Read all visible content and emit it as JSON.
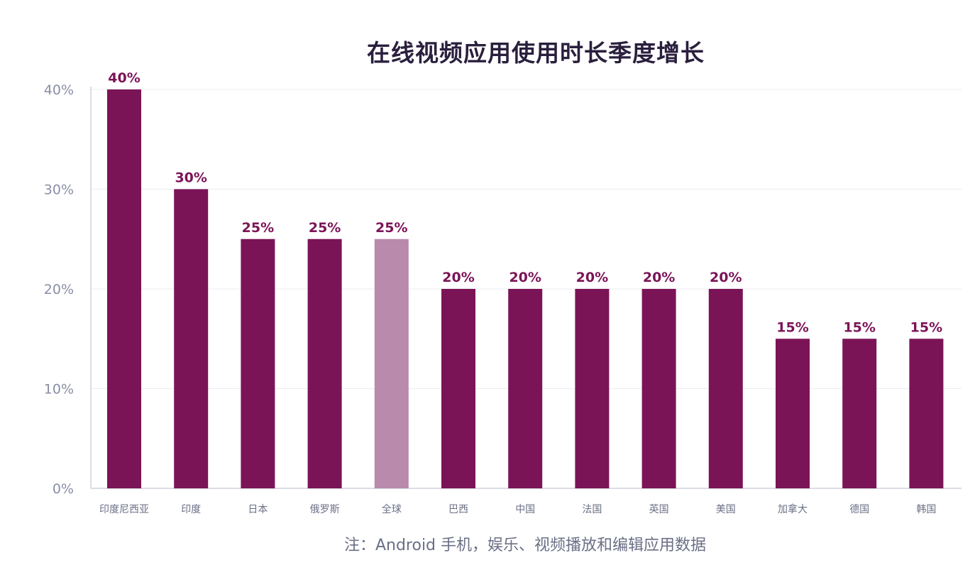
{
  "chart_data": {
    "type": "bar",
    "title": "在线视频应用使用时长季度增长",
    "xlabel": "",
    "ylabel": "",
    "categories": [
      "印度尼西亚",
      "印度",
      "日本",
      "俄罗斯",
      "全球",
      "巴西",
      "中国",
      "法国",
      "英国",
      "美国",
      "加拿大",
      "德国",
      "韩国"
    ],
    "values": [
      40,
      30,
      25,
      25,
      25,
      20,
      20,
      20,
      20,
      20,
      15,
      15,
      15
    ],
    "data_labels": [
      "40%",
      "30%",
      "25%",
      "25%",
      "25%",
      "20%",
      "20%",
      "20%",
      "20%",
      "20%",
      "15%",
      "15%",
      "15%"
    ],
    "ylim": [
      0,
      40
    ],
    "yticks": [
      0,
      10,
      20,
      30,
      40
    ],
    "ytick_labels": [
      "0%",
      "10%",
      "20%",
      "30%",
      "40%"
    ],
    "grid": true,
    "colors": {
      "bar": "#7b1457",
      "highlight": "#b98aac",
      "label": "#7b1457"
    },
    "highlight_category": "全球",
    "note": "注：Android 手机，娱乐、视频播放和编辑应用数据"
  }
}
